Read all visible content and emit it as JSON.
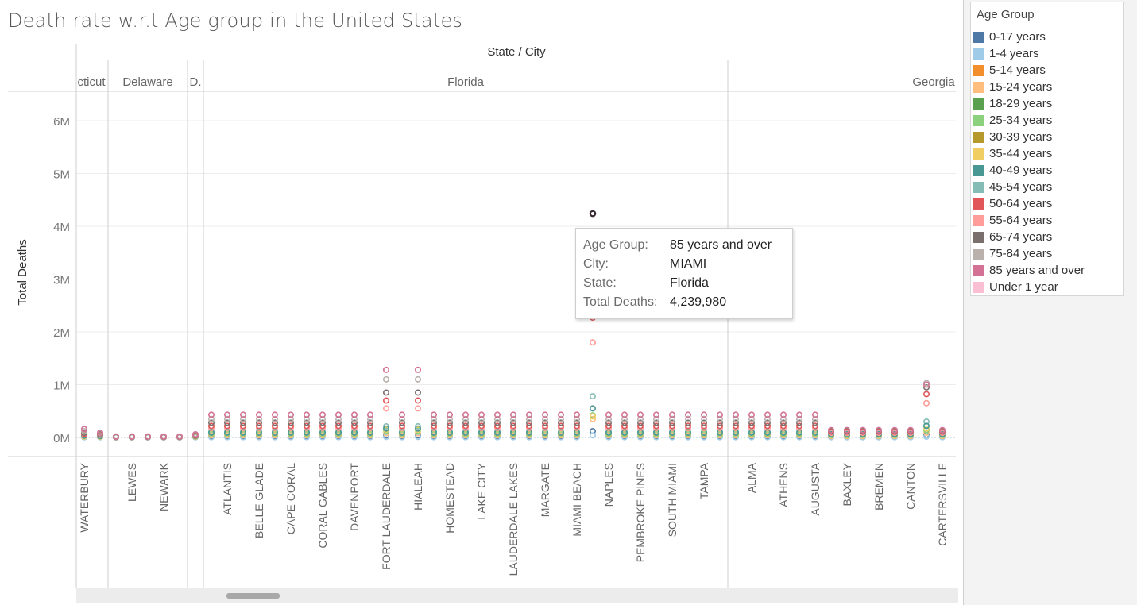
{
  "title": "Death rate w.r.t Age group in the United States",
  "colors": {
    "0-17 years": "#4e79a7",
    "1-4 years": "#a0cbe8",
    "5-14 years": "#f28e2b",
    "15-24 years": "#ffbe7d",
    "18-29 years": "#59a14f",
    "25-34 years": "#8cd17d",
    "30-39 years": "#b6992d",
    "35-44 years": "#f1ce63",
    "40-49 years": "#499894",
    "45-54 years": "#86bcb6",
    "50-64 years": "#e15759",
    "55-64 years": "#ff9d9a",
    "65-74 years": "#79706e",
    "75-84 years": "#bab0ac",
    "85 years and over": "#d37295",
    "Under 1 year": "#fabfd2"
  },
  "legend": {
    "title": "Age Group",
    "items": [
      "0-17 years",
      "1-4 years",
      "5-14 years",
      "15-24 years",
      "18-29 years",
      "25-34 years",
      "30-39 years",
      "35-44 years",
      "40-49 years",
      "45-54 years",
      "50-64 years",
      "55-64 years",
      "65-74 years",
      "75-84 years",
      "85 years and over",
      "Under 1 year"
    ]
  },
  "tooltip": {
    "rows": [
      {
        "label": "Age Group:",
        "value": "85 years and over"
      },
      {
        "label": "City:",
        "value": "MIAMI"
      },
      {
        "label": "State:",
        "value": "Florida"
      },
      {
        "label": "Total Deaths:",
        "value": "4,239,980"
      }
    ]
  },
  "chart_data": {
    "type": "scatter",
    "title": "Death rate w.r.t Age group in the United States",
    "column_header": "State / City",
    "ylabel": "Total Deaths",
    "yticks": [
      "0M",
      "1M",
      "2M",
      "3M",
      "4M",
      "5M",
      "6M"
    ],
    "ylim": [
      0,
      6500000
    ],
    "states": [
      {
        "name": "cticut",
        "cities": [
          "WATERBURY",
          ""
        ]
      },
      {
        "name": "Delaware",
        "cities": [
          "",
          "LEWES",
          "",
          "NEWARK",
          ""
        ]
      },
      {
        "name": "D.",
        "cities": [
          ""
        ]
      },
      {
        "name": "Florida",
        "cities": [
          "",
          "ATLANTIS",
          "",
          "BELLE GLADE",
          "",
          "CAPE CORAL",
          "",
          "CORAL GABLES",
          "",
          "DAVENPORT",
          "",
          "FORT LAUDERDALE",
          "",
          "HIALEAH",
          "",
          "HOMESTEAD",
          "",
          "LAKE CITY",
          "",
          "LAUDERDALE LAKES",
          "",
          "MARGATE",
          "",
          "MIAMI BEACH",
          "",
          "NAPLES",
          "",
          "PEMBROKE PINES",
          "",
          "SOUTH MIAMI",
          "",
          "TAMPA",
          ""
        ]
      },
      {
        "name": "Georgia",
        "cities": [
          "",
          "ALMA",
          "",
          "ATHENS",
          "",
          "AUGUSTA",
          "",
          "BAXLEY",
          "",
          "BREMEN",
          "",
          "CANTON",
          "",
          "CARTERSVILLE"
        ]
      }
    ],
    "series": [
      {
        "name": "0-17 years",
        "values": [
          10000,
          9000,
          3000,
          3000,
          3000,
          3000,
          3000,
          9000,
          20000,
          20000,
          20000,
          20000,
          20000,
          20000,
          20000,
          20000,
          20000,
          20000,
          20000,
          40000,
          20000,
          40000,
          20000,
          20000,
          20000,
          20000,
          20000,
          20000,
          20000,
          20000,
          20000,
          20000,
          120000,
          20000,
          20000,
          20000,
          20000,
          20000,
          20000,
          20000,
          20000,
          20000,
          20000,
          20000,
          20000,
          20000,
          20000,
          12000,
          12000,
          12000,
          12000,
          12000,
          12000,
          50000,
          12000,
          12000,
          12000,
          12000,
          12000,
          12000,
          12000,
          12000,
          12000,
          12000,
          12000
        ]
      },
      {
        "name": "1-4 years",
        "values": [
          3000,
          3000,
          1000,
          1000,
          1000,
          1000,
          1000,
          3000,
          5000,
          5000,
          5000,
          5000,
          5000,
          5000,
          5000,
          5000,
          5000,
          5000,
          5000,
          10000,
          5000,
          10000,
          5000,
          5000,
          5000,
          5000,
          5000,
          5000,
          5000,
          5000,
          5000,
          5000,
          40000,
          5000,
          5000,
          5000,
          5000,
          5000,
          5000,
          5000,
          5000,
          5000,
          5000,
          5000,
          5000,
          5000,
          5000,
          4000,
          4000,
          4000,
          4000,
          4000,
          4000,
          15000,
          4000,
          4000,
          4000,
          4000,
          4000,
          4000,
          4000,
          4000,
          4000,
          4000,
          4000
        ]
      },
      {
        "name": "15-24 years",
        "values": [
          15000,
          12000,
          4000,
          4000,
          4000,
          4000,
          4000,
          12000,
          40000,
          40000,
          40000,
          40000,
          40000,
          40000,
          40000,
          40000,
          40000,
          40000,
          40000,
          80000,
          40000,
          80000,
          40000,
          40000,
          40000,
          40000,
          40000,
          40000,
          40000,
          40000,
          40000,
          40000,
          350000,
          40000,
          40000,
          40000,
          40000,
          40000,
          40000,
          40000,
          40000,
          40000,
          40000,
          40000,
          40000,
          40000,
          40000,
          25000,
          25000,
          25000,
          25000,
          25000,
          25000,
          90000,
          25000,
          25000,
          25000,
          25000,
          25000,
          25000,
          25000,
          25000,
          25000,
          25000,
          25000
        ]
      },
      {
        "name": "25-34 years",
        "values": [
          25000,
          20000,
          5000,
          5000,
          5000,
          5000,
          5000,
          18000,
          60000,
          60000,
          60000,
          60000,
          60000,
          60000,
          60000,
          60000,
          60000,
          60000,
          60000,
          130000,
          60000,
          130000,
          60000,
          60000,
          60000,
          60000,
          60000,
          60000,
          60000,
          60000,
          60000,
          60000,
          420000,
          60000,
          60000,
          60000,
          60000,
          60000,
          60000,
          60000,
          60000,
          60000,
          60000,
          60000,
          60000,
          60000,
          60000,
          40000,
          40000,
          40000,
          40000,
          40000,
          40000,
          140000,
          40000,
          40000,
          40000,
          40000,
          40000,
          40000,
          40000,
          40000,
          40000,
          40000,
          40000
        ]
      },
      {
        "name": "35-44 years",
        "values": [
          30000,
          25000,
          6000,
          6000,
          6000,
          6000,
          6000,
          22000,
          80000,
          80000,
          80000,
          80000,
          80000,
          80000,
          80000,
          80000,
          80000,
          80000,
          80000,
          150000,
          80000,
          150000,
          80000,
          80000,
          80000,
          80000,
          80000,
          80000,
          80000,
          80000,
          80000,
          80000,
          400000,
          80000,
          80000,
          80000,
          80000,
          80000,
          80000,
          80000,
          80000,
          80000,
          80000,
          80000,
          80000,
          80000,
          80000,
          50000,
          50000,
          50000,
          50000,
          50000,
          50000,
          170000,
          50000,
          50000,
          50000,
          50000,
          50000,
          50000,
          50000,
          50000,
          50000,
          50000,
          50000
        ]
      },
      {
        "name": "45-54 years",
        "values": [
          40000,
          30000,
          8000,
          8000,
          8000,
          8000,
          8000,
          28000,
          110000,
          110000,
          110000,
          110000,
          110000,
          110000,
          110000,
          110000,
          110000,
          110000,
          110000,
          210000,
          110000,
          210000,
          110000,
          110000,
          110000,
          110000,
          110000,
          110000,
          110000,
          110000,
          110000,
          110000,
          780000,
          110000,
          110000,
          110000,
          110000,
          110000,
          110000,
          110000,
          110000,
          110000,
          110000,
          110000,
          110000,
          110000,
          110000,
          70000,
          70000,
          70000,
          70000,
          70000,
          70000,
          300000,
          70000,
          70000,
          70000,
          70000,
          70000,
          70000,
          70000,
          70000,
          70000,
          70000,
          70000
        ]
      },
      {
        "name": "40-49 years",
        "values": [
          35000,
          28000,
          7000,
          7000,
          7000,
          7000,
          7000,
          25000,
          90000,
          90000,
          90000,
          90000,
          90000,
          90000,
          90000,
          90000,
          90000,
          90000,
          90000,
          170000,
          90000,
          170000,
          90000,
          90000,
          90000,
          90000,
          90000,
          90000,
          90000,
          90000,
          90000,
          90000,
          550000,
          90000,
          90000,
          90000,
          90000,
          90000,
          90000,
          90000,
          90000,
          90000,
          90000,
          90000,
          90000,
          90000,
          90000,
          60000,
          60000,
          60000,
          60000,
          60000,
          60000,
          220000,
          60000,
          60000,
          60000,
          60000,
          60000,
          60000,
          60000,
          60000,
          60000,
          60000,
          60000
        ]
      },
      {
        "name": "55-64 years",
        "values": [
          60000,
          50000,
          10000,
          10000,
          10000,
          10000,
          10000,
          35000,
          180000,
          180000,
          180000,
          180000,
          180000,
          180000,
          180000,
          180000,
          180000,
          180000,
          180000,
          550000,
          180000,
          550000,
          180000,
          180000,
          180000,
          180000,
          180000,
          180000,
          180000,
          180000,
          180000,
          180000,
          1800000,
          180000,
          180000,
          180000,
          180000,
          180000,
          180000,
          180000,
          180000,
          180000,
          180000,
          180000,
          180000,
          180000,
          180000,
          90000,
          90000,
          90000,
          90000,
          90000,
          90000,
          650000,
          90000,
          90000,
          90000,
          90000,
          90000,
          90000,
          90000,
          90000,
          90000,
          90000,
          90000
        ]
      },
      {
        "name": "50-64 years",
        "values": [
          70000,
          60000,
          12000,
          12000,
          12000,
          12000,
          12000,
          40000,
          220000,
          220000,
          220000,
          220000,
          220000,
          220000,
          220000,
          220000,
          220000,
          220000,
          220000,
          700000,
          220000,
          700000,
          220000,
          220000,
          220000,
          220000,
          220000,
          220000,
          220000,
          220000,
          220000,
          220000,
          2270000,
          220000,
          220000,
          220000,
          220000,
          220000,
          220000,
          220000,
          220000,
          220000,
          220000,
          220000,
          220000,
          220000,
          220000,
          110000,
          110000,
          110000,
          110000,
          110000,
          110000,
          820000,
          110000,
          110000,
          110000,
          110000,
          110000,
          110000,
          110000,
          110000,
          110000,
          110000,
          110000
        ]
      },
      {
        "name": "65-74 years",
        "values": [
          90000,
          70000,
          14000,
          14000,
          14000,
          14000,
          14000,
          50000,
          280000,
          280000,
          280000,
          280000,
          280000,
          280000,
          280000,
          280000,
          280000,
          280000,
          280000,
          850000,
          280000,
          850000,
          280000,
          280000,
          280000,
          280000,
          280000,
          280000,
          280000,
          280000,
          280000,
          280000,
          2820000,
          280000,
          280000,
          280000,
          280000,
          280000,
          280000,
          280000,
          280000,
          280000,
          280000,
          280000,
          280000,
          280000,
          280000,
          130000,
          130000,
          130000,
          130000,
          130000,
          130000,
          950000,
          130000,
          130000,
          130000,
          130000,
          130000,
          130000,
          130000,
          130000,
          130000,
          130000,
          130000
        ]
      },
      {
        "name": "75-84 years",
        "values": [
          120000,
          80000,
          16000,
          16000,
          16000,
          16000,
          16000,
          55000,
          350000,
          350000,
          350000,
          350000,
          350000,
          350000,
          350000,
          350000,
          350000,
          350000,
          350000,
          1100000,
          350000,
          1100000,
          350000,
          350000,
          350000,
          350000,
          350000,
          350000,
          350000,
          350000,
          350000,
          350000,
          3630000,
          350000,
          350000,
          350000,
          350000,
          350000,
          350000,
          350000,
          350000,
          350000,
          350000,
          350000,
          350000,
          350000,
          350000,
          140000,
          140000,
          140000,
          140000,
          140000,
          140000,
          1030000,
          140000,
          140000,
          140000,
          140000,
          140000,
          140000,
          140000,
          140000,
          140000,
          140000,
          140000
        ]
      },
      {
        "name": "85 years and over",
        "values": [
          160000,
          90000,
          18000,
          18000,
          18000,
          18000,
          18000,
          60000,
          430000,
          430000,
          430000,
          430000,
          430000,
          430000,
          430000,
          430000,
          430000,
          430000,
          430000,
          1280000,
          430000,
          1280000,
          430000,
          430000,
          430000,
          430000,
          430000,
          430000,
          430000,
          430000,
          430000,
          430000,
          4239980,
          430000,
          430000,
          430000,
          430000,
          430000,
          430000,
          430000,
          430000,
          430000,
          430000,
          430000,
          430000,
          430000,
          430000,
          140000,
          140000,
          140000,
          140000,
          140000,
          140000,
          1000000,
          140000,
          140000,
          140000,
          140000,
          140000,
          140000,
          140000,
          140000,
          140000,
          140000,
          140000
        ]
      }
    ],
    "grid": true
  }
}
